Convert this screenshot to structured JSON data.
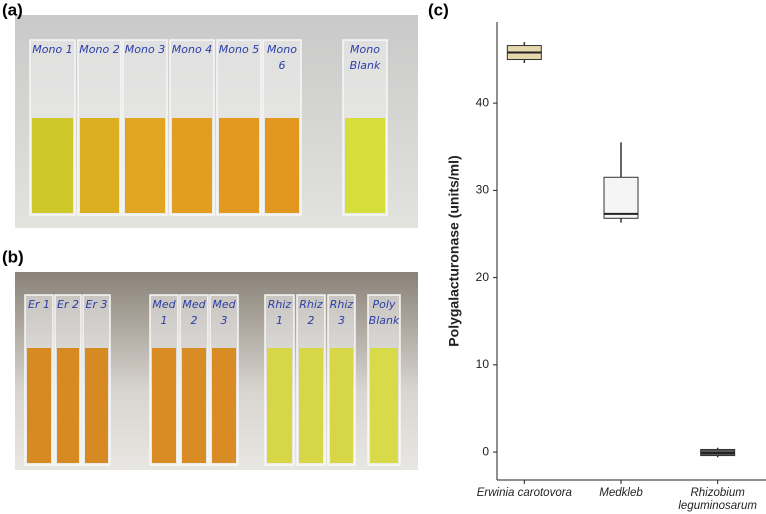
{
  "photos": [
    {
      "label": "(a)",
      "cuvettes": [
        "Mono 1",
        "Mono 2",
        "Mono 3",
        "Mono 4",
        "Mono 5",
        "Mono 6",
        "Mono Blank"
      ]
    },
    {
      "label": "(b)",
      "cuvettes": [
        "Er 1",
        "Er 2",
        "Er 3",
        "Med 1",
        "Med 2",
        "Med 3",
        "Rhiz 1",
        "Rhiz 2",
        "Rhiz 3",
        "Poly Blank"
      ]
    }
  ],
  "chart_data": {
    "type": "box",
    "panel_label": "(c)",
    "y_label": "Polygalacturonase (units/ml)",
    "categories": [
      "Erwinia carotovora",
      "Medkleb",
      "Rhizobium leguminosarum"
    ],
    "boxes": [
      {
        "min": 44.6,
        "q1": 45.0,
        "median": 45.8,
        "q3": 46.6,
        "max": 47.0,
        "color": "#e6d8ad"
      },
      {
        "min": 26.3,
        "q1": 26.8,
        "median": 27.3,
        "q3": 31.5,
        "max": 35.5,
        "color": "#f5f5f5"
      },
      {
        "min": -0.6,
        "q1": -0.4,
        "median": -0.1,
        "q3": 0.3,
        "max": 0.5,
        "color": "#555555"
      }
    ],
    "ylim": [
      -3.2,
      49.3
    ],
    "yticks": [
      0,
      10,
      20,
      30,
      40
    ]
  }
}
